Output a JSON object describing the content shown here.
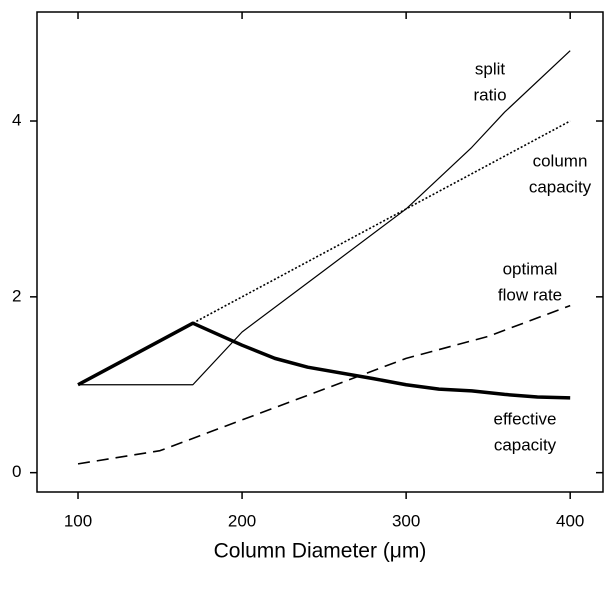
{
  "chart_data": {
    "type": "line",
    "x_label": "Column Diameter (μm)",
    "xlim": [
      75,
      420
    ],
    "ylim": [
      -0.22,
      5.24
    ],
    "xticks": [
      100,
      200,
      300,
      400
    ],
    "yticks": [
      0,
      2,
      4
    ],
    "series": [
      {
        "lines": [
          "split",
          "ratio"
        ],
        "color": "#000000",
        "width": 1.2,
        "dash": "none",
        "x": [
          100,
          170,
          200,
          250,
          300,
          340,
          360,
          400
        ],
        "values": [
          1,
          1,
          1.6,
          2.3,
          3.0,
          3.7,
          4.1,
          4.8
        ]
      },
      {
        "lines": [
          "column",
          "capacity"
        ],
        "color": "#000000",
        "width": 1.6,
        "dash": "2,2",
        "x": [
          170,
          400
        ],
        "values": [
          1.7,
          4.0
        ]
      },
      {
        "lines": [
          "optimal",
          "flow rate"
        ],
        "color": "#000000",
        "width": 1.6,
        "dash": "12,7",
        "x": [
          100,
          150,
          200,
          250,
          300,
          350,
          400
        ],
        "values": [
          0.1,
          0.25,
          0.6,
          0.95,
          1.3,
          1.55,
          1.9
        ]
      },
      {
        "lines": [
          "effective",
          "capacity"
        ],
        "color": "#000000",
        "width": 3.5,
        "dash": "none",
        "x": [
          100,
          170,
          200,
          220,
          240,
          280,
          300,
          320,
          340,
          360,
          380,
          400
        ],
        "values": [
          1,
          1.7,
          1.45,
          1.3,
          1.2,
          1.07,
          1.0,
          0.95,
          0.93,
          0.89,
          0.86,
          0.85
        ]
      }
    ]
  }
}
